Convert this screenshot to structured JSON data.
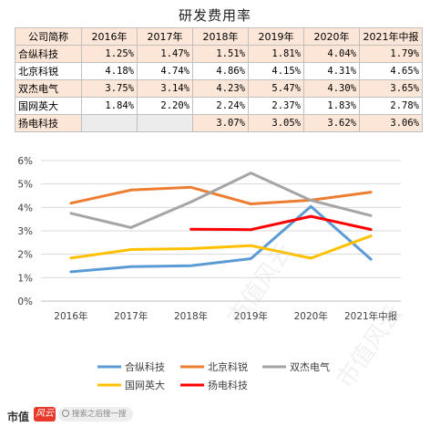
{
  "header": {
    "title": "研发费用率"
  },
  "table": {
    "columns": [
      "公司简称",
      "2016年",
      "2017年",
      "2018年",
      "2019年",
      "2020年",
      "2021年中报"
    ],
    "rows": [
      [
        "合纵科技",
        "1.25%",
        "1.47%",
        "1.51%",
        "1.81%",
        "4.04%",
        "1.79%"
      ],
      [
        "北京科锐",
        "4.18%",
        "4.74%",
        "4.86%",
        "4.15%",
        "4.31%",
        "4.65%"
      ],
      [
        "双杰电气",
        "3.75%",
        "3.14%",
        "4.23%",
        "5.47%",
        "4.30%",
        "3.65%"
      ],
      [
        "国网英大",
        "1.84%",
        "2.20%",
        "2.24%",
        "2.37%",
        "1.83%",
        "2.78%"
      ],
      [
        "扬电科技",
        "",
        "",
        "3.07%",
        "3.05%",
        "3.62%",
        "3.06%"
      ]
    ]
  },
  "chart_data": {
    "type": "line",
    "categories": [
      "2016年",
      "2017年",
      "2018年",
      "2019年",
      "2020年",
      "2021年中报"
    ],
    "ylim": [
      0,
      6
    ],
    "yticks": [
      "0%",
      "1%",
      "2%",
      "3%",
      "4%",
      "5%",
      "6%"
    ],
    "grid": true,
    "legend_position": "bottom",
    "series": [
      {
        "name": "合纵科技",
        "color": "#5b9bd5",
        "values": [
          1.25,
          1.47,
          1.51,
          1.81,
          4.04,
          1.79
        ]
      },
      {
        "name": "北京科锐",
        "color": "#ed7d31",
        "values": [
          4.18,
          4.74,
          4.86,
          4.15,
          4.31,
          4.65
        ]
      },
      {
        "name": "双杰电气",
        "color": "#a5a5a5",
        "values": [
          3.75,
          3.14,
          4.23,
          5.47,
          4.3,
          3.65
        ]
      },
      {
        "name": "国网英大",
        "color": "#ffc000",
        "values": [
          1.84,
          2.2,
          2.24,
          2.37,
          1.83,
          2.78
        ]
      },
      {
        "name": "扬电科技",
        "color": "#ff0000",
        "values": [
          null,
          null,
          3.07,
          3.05,
          3.62,
          3.06
        ]
      }
    ]
  },
  "footer": {
    "logo_text": "市值",
    "logo_badge": "风云",
    "search_placeholder": "搜索之后搜一搜"
  },
  "watermark": {
    "text": "市值风云"
  }
}
